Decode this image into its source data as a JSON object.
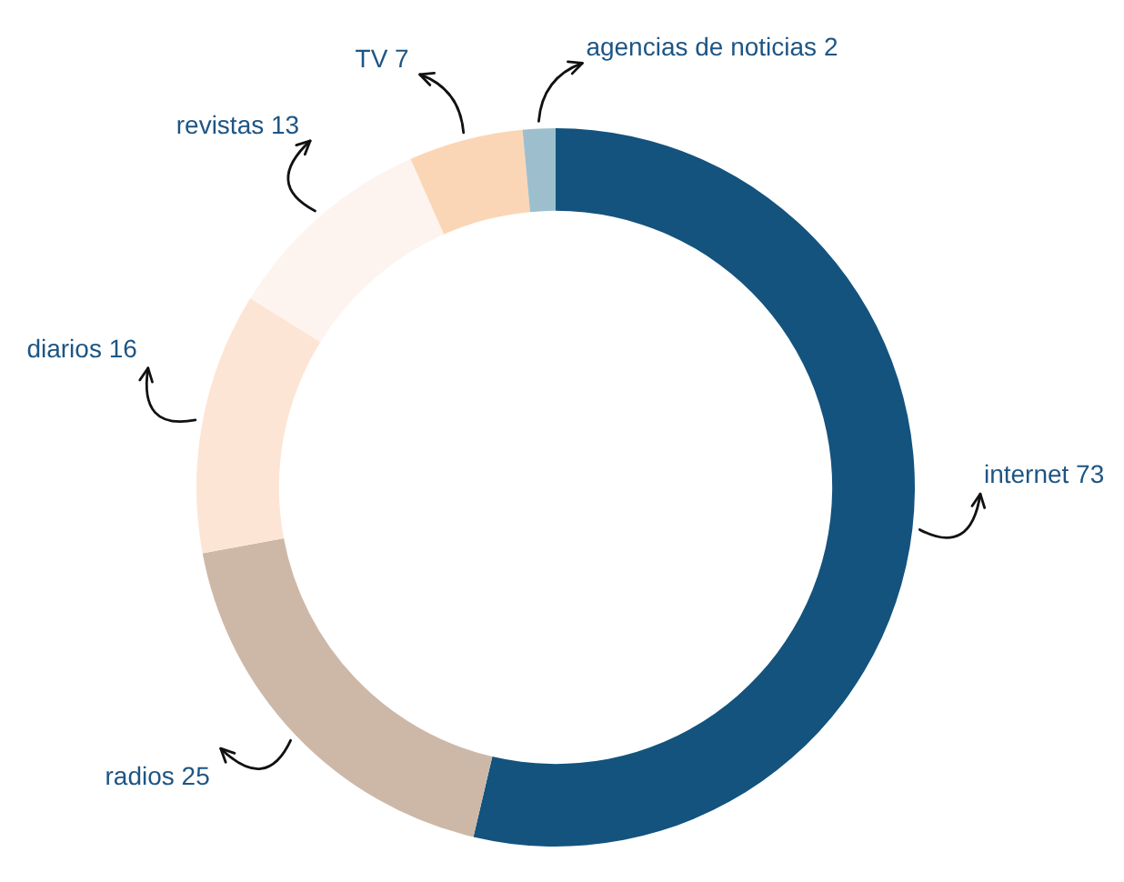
{
  "chart_data": {
    "type": "donut",
    "categories": [
      "internet",
      "radios",
      "diarios",
      "revistas",
      "TV",
      "agencias de noticias"
    ],
    "values": [
      73,
      25,
      16,
      13,
      7,
      2
    ],
    "colors": [
      "#13537e",
      "#cdb8a8",
      "#fde5d6",
      "#fef4ef",
      "#fbd6b6",
      "#9dbfcd"
    ],
    "data_labels": true,
    "legend": false
  }
}
